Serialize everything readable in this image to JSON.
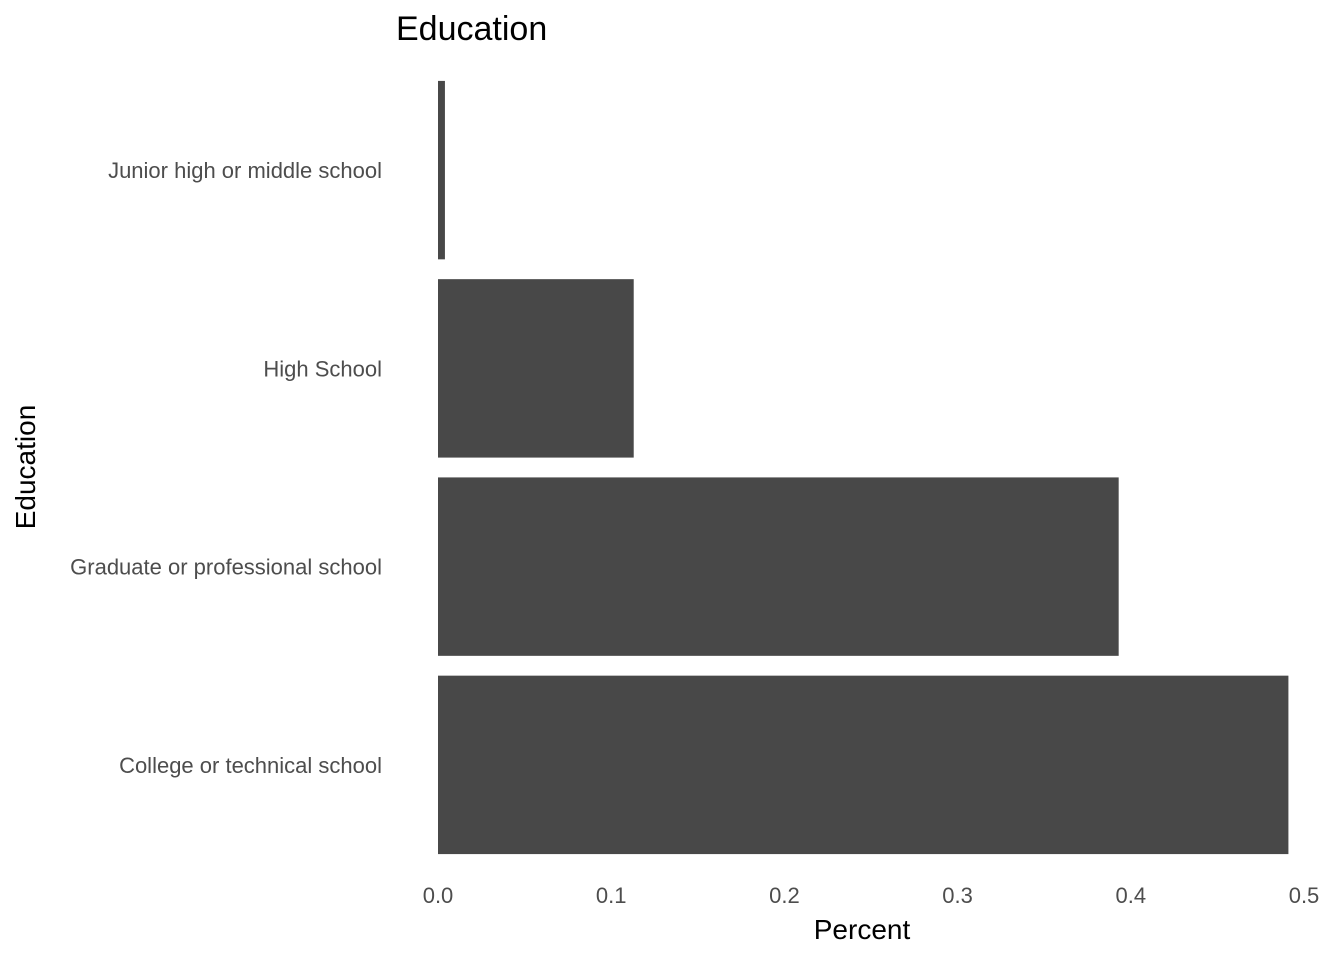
{
  "chart_data": {
    "type": "bar",
    "orientation": "horizontal",
    "title": "Education",
    "xlabel": "Percent",
    "ylabel": "Education",
    "categories": [
      "College or technical school",
      "Graduate or professional school",
      "High School",
      "Junior high or middle school"
    ],
    "values": [
      0.491,
      0.393,
      0.113,
      0.004
    ],
    "xlim": [
      0,
      0.5
    ],
    "xticks": [
      "0.0",
      "0.1",
      "0.2",
      "0.3",
      "0.4",
      "0.5"
    ],
    "grid": false,
    "bar_color": "#484848"
  }
}
